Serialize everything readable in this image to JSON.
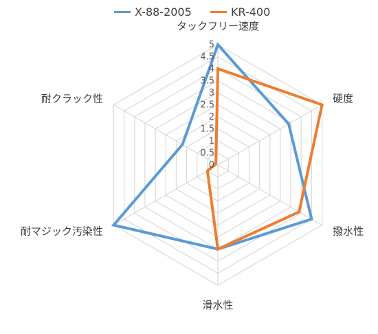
{
  "chart_data": {
    "type": "radar",
    "axes": [
      "タックフリー速度",
      "硬度",
      "撥水性",
      "滑水性",
      "耐マジック汚染性",
      "耐クラック性"
    ],
    "ticks": [
      "0",
      "0.5",
      "1",
      "1.5",
      "2",
      "2.5",
      "3",
      "3.5",
      "4",
      "4.5",
      "5"
    ],
    "rlim": [
      0,
      5
    ],
    "grid": true,
    "legend_position": "top",
    "series": [
      {
        "name": "X-88-2005",
        "color": "#5b9bd5",
        "values": [
          5,
          3.4,
          4.5,
          3.5,
          5,
          1.7
        ]
      },
      {
        "name": "KR-400",
        "color": "#ed7d31",
        "values": [
          4,
          5,
          3.9,
          3.5,
          0.5,
          0.1
        ]
      }
    ]
  }
}
